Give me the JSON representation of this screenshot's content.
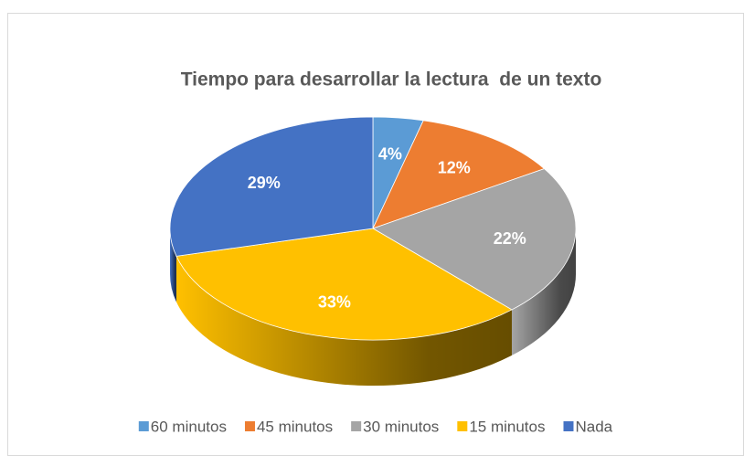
{
  "chart_data": {
    "type": "pie",
    "title": "Tiempo para desarrollar la lectura  de un texto",
    "categories": [
      "60 minutos",
      "45 minutos",
      "30 minutos",
      "15 minutos",
      "Nada"
    ],
    "values": [
      4,
      12,
      22,
      33,
      29
    ],
    "value_labels": [
      "4%",
      "12%",
      "22%",
      "33%",
      "29%"
    ],
    "colors": [
      "#5b9bd5",
      "#ed7d31",
      "#a5a5a5",
      "#ffc000",
      "#4472c4"
    ],
    "legend": "bottom"
  }
}
